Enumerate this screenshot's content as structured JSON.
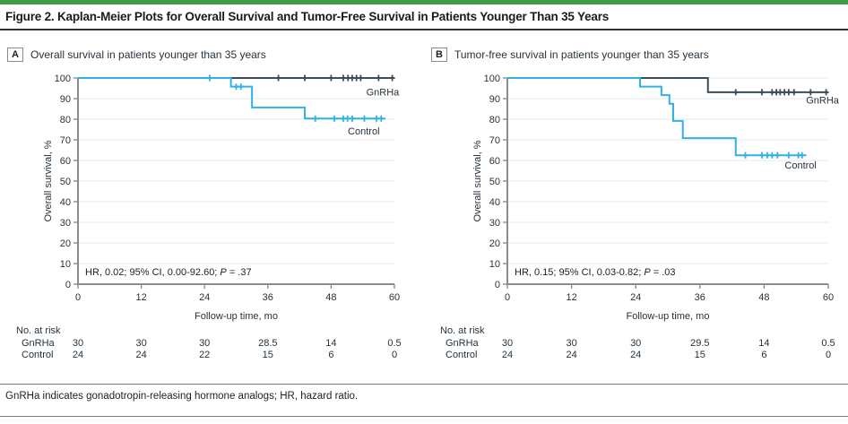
{
  "figure": {
    "title": "Figure 2. Kaplan-Meier Plots for Overall Survival and Tumor-Free Survival in Patients Younger Than 35 Years",
    "footnote": "GnRHa indicates gonadotropin-releasing hormone analogs; HR, hazard ratio.",
    "accent_color": "#3f9b45"
  },
  "chart_data": [
    {
      "panel": "A",
      "type": "line",
      "title": "Overall survival in patients younger than 35 years",
      "xlabel": "Follow-up time, mo",
      "ylabel": "Overall survival, %",
      "xlim": [
        0,
        60
      ],
      "ylim": [
        0,
        100
      ],
      "xticks": [
        0,
        12,
        24,
        36,
        48,
        60
      ],
      "yticks": [
        0,
        10,
        20,
        30,
        40,
        50,
        60,
        70,
        80,
        90,
        100
      ],
      "grid": true,
      "annotation": {
        "text_before": "HR, 0.02; 95% CI, 0.00-92.60; ",
        "p": "P",
        "text_after": " = .37"
      },
      "series": [
        {
          "name": "GnRHa",
          "color": "#3c4d59",
          "steps": [
            [
              0,
              100
            ],
            [
              60,
              100
            ]
          ],
          "censors": [
            [
              38,
              100
            ],
            [
              43,
              100
            ],
            [
              48,
              100
            ],
            [
              50.3,
              100
            ],
            [
              51.2,
              100
            ],
            [
              52,
              100
            ],
            [
              52.8,
              100
            ],
            [
              53.6,
              100
            ],
            [
              57,
              100
            ],
            [
              59.6,
              100
            ]
          ],
          "label_pos": [
            60.9,
            91.5
          ]
        },
        {
          "name": "Control",
          "color": "#30b2e6",
          "steps": [
            [
              0,
              100
            ],
            [
              29,
              100
            ],
            [
              29,
              95.8
            ],
            [
              33,
              95.8
            ],
            [
              33,
              85.7
            ],
            [
              43,
              85.7
            ],
            [
              43,
              80.3
            ],
            [
              58.3,
              80.3
            ]
          ],
          "censors": [
            [
              25,
              100
            ],
            [
              30,
              95.8
            ],
            [
              30.9,
              95.8
            ],
            [
              45,
              80.3
            ],
            [
              48.6,
              80.3
            ],
            [
              50.3,
              80.3
            ],
            [
              51.1,
              80.3
            ],
            [
              52,
              80.3
            ],
            [
              54.3,
              80.3
            ],
            [
              56.6,
              80.3
            ],
            [
              57.5,
              80.3
            ]
          ],
          "label_pos": [
            57.2,
            72.6
          ]
        }
      ],
      "risk_table": {
        "label": "No. at risk",
        "rows": [
          {
            "name": "GnRHa",
            "values": [
              "30",
              "30",
              "30",
              "28.5",
              "14",
              "0.5"
            ]
          },
          {
            "name": "Control",
            "values": [
              "24",
              "24",
              "22",
              "15",
              "6",
              "0"
            ]
          }
        ]
      }
    },
    {
      "panel": "B",
      "type": "line",
      "title": "Tumor-free survival in patients younger than 35 years",
      "xlabel": "Follow-up time, mo",
      "ylabel": "Overall survival, %",
      "xlim": [
        0,
        60
      ],
      "ylim": [
        0,
        100
      ],
      "xticks": [
        0,
        12,
        24,
        36,
        48,
        60
      ],
      "yticks": [
        0,
        10,
        20,
        30,
        40,
        50,
        60,
        70,
        80,
        90,
        100
      ],
      "grid": true,
      "annotation": {
        "text_before": "HR, 0.15; 95% CI, 0.03-0.82; ",
        "p": "P",
        "text_after": " = .03"
      },
      "series": [
        {
          "name": "GnRHa",
          "color": "#3c4d59",
          "steps": [
            [
              0,
              100
            ],
            [
              37.5,
              100
            ],
            [
              37.5,
              93.1
            ],
            [
              60,
              93.1
            ]
          ],
          "censors": [
            [
              42.7,
              93.1
            ],
            [
              47.6,
              93.1
            ],
            [
              49.5,
              93.1
            ],
            [
              50.3,
              93.1
            ],
            [
              51,
              93.1
            ],
            [
              51.8,
              93.1
            ],
            [
              52.6,
              93.1
            ],
            [
              53.6,
              93.1
            ],
            [
              56.7,
              93.1
            ],
            [
              59.6,
              93.1
            ]
          ],
          "label_pos": [
            62,
            87.6
          ]
        },
        {
          "name": "Control",
          "color": "#30b2e6",
          "steps": [
            [
              0,
              100
            ],
            [
              24.8,
              100
            ],
            [
              24.8,
              95.8
            ],
            [
              28.8,
              95.8
            ],
            [
              28.8,
              91.7
            ],
            [
              30.3,
              91.7
            ],
            [
              30.3,
              87.5
            ],
            [
              31,
              87.5
            ],
            [
              31,
              79.2
            ],
            [
              32.8,
              79.2
            ],
            [
              32.8,
              70.8
            ],
            [
              42.7,
              70.8
            ],
            [
              42.7,
              62.5
            ],
            [
              55.9,
              62.5
            ]
          ],
          "censors": [
            [
              44.5,
              62.5
            ],
            [
              47.6,
              62.5
            ],
            [
              48.6,
              62.5
            ],
            [
              49.5,
              62.5
            ],
            [
              50.5,
              62.5
            ],
            [
              52.6,
              62.5
            ],
            [
              54.4,
              62.5
            ],
            [
              55.1,
              62.5
            ]
          ],
          "label_pos": [
            57.8,
            56
          ]
        }
      ],
      "risk_table": {
        "label": "No. at risk",
        "rows": [
          {
            "name": "GnRHa",
            "values": [
              "30",
              "30",
              "30",
              "29.5",
              "14",
              "0.5"
            ]
          },
          {
            "name": "Control",
            "values": [
              "24",
              "24",
              "24",
              "15",
              "6",
              "0"
            ]
          }
        ]
      }
    }
  ]
}
